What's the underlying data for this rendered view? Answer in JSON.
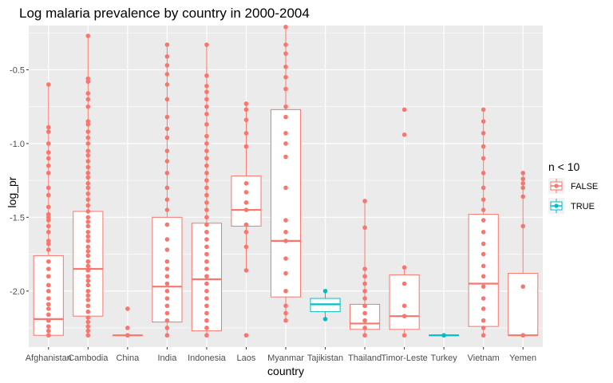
{
  "chart_data": {
    "type": "boxplot",
    "title": "Log malaria prevalence by country in 2000-2004",
    "xlabel": "country",
    "ylabel": "log_pr",
    "categories": [
      "Afghanistan",
      "Cambodia",
      "China",
      "India",
      "Indonesia",
      "Laos",
      "Myanmar",
      "Tajikistan",
      "Thailand",
      "Timor-Leste",
      "Turkey",
      "Vietnam",
      "Yemen"
    ],
    "ylim": [
      -2.38,
      -0.2
    ],
    "y_ticks": [
      -2.0,
      -1.5,
      -1.0,
      -0.5
    ],
    "y_tick_labels": [
      "-2.0",
      "-1.5",
      "-1.0",
      "-0.5"
    ],
    "grid": true,
    "legend": {
      "title": "n < 10",
      "position": "right",
      "entries": [
        {
          "label": "FALSE",
          "color": "#F8766D"
        },
        {
          "label": "TRUE",
          "color": "#00BFC4"
        }
      ]
    },
    "colors": {
      "FALSE": "#F8766D",
      "TRUE": "#00BFC4",
      "panel": "#EBEBEB",
      "grid": "#FFFFFF"
    },
    "boxes": [
      {
        "country": "Afghanistan",
        "group": "FALSE",
        "min": -2.3,
        "q1": -2.3,
        "median": -2.19,
        "q3": -1.76,
        "max": -0.6
      },
      {
        "country": "Cambodia",
        "group": "FALSE",
        "min": -2.3,
        "q1": -2.17,
        "median": -1.85,
        "q3": -1.46,
        "max": -0.27
      },
      {
        "country": "China",
        "group": "FALSE",
        "min": -2.3,
        "q1": -2.3,
        "median": -2.3,
        "q3": -2.3,
        "max": -2.3
      },
      {
        "country": "India",
        "group": "FALSE",
        "min": -2.3,
        "q1": -2.21,
        "median": -1.97,
        "q3": -1.5,
        "max": -0.33
      },
      {
        "country": "Indonesia",
        "group": "FALSE",
        "min": -2.3,
        "q1": -2.27,
        "median": -1.92,
        "q3": -1.54,
        "max": -0.33
      },
      {
        "country": "Laos",
        "group": "FALSE",
        "min": -1.86,
        "q1": -1.56,
        "median": -1.45,
        "q3": -1.22,
        "max": -0.73
      },
      {
        "country": "Myanmar",
        "group": "FALSE",
        "min": -2.2,
        "q1": -2.04,
        "median": -1.66,
        "q3": -0.77,
        "max": -0.21
      },
      {
        "country": "Tajikistan",
        "group": "TRUE",
        "min": -2.19,
        "q1": -2.14,
        "median": -2.09,
        "q3": -2.05,
        "max": -2.0
      },
      {
        "country": "Thailand",
        "group": "FALSE",
        "min": -2.3,
        "q1": -2.26,
        "median": -2.22,
        "q3": -2.09,
        "max": -1.39
      },
      {
        "country": "Timor-Leste",
        "group": "FALSE",
        "min": -2.3,
        "q1": -2.26,
        "median": -2.17,
        "q3": -1.89,
        "max": -1.84
      },
      {
        "country": "Turkey",
        "group": "TRUE",
        "min": -2.3,
        "q1": -2.3,
        "median": -2.3,
        "q3": -2.3,
        "max": -2.3
      },
      {
        "country": "Vietnam",
        "group": "FALSE",
        "min": -2.3,
        "q1": -2.24,
        "median": -1.95,
        "q3": -1.48,
        "max": -0.77
      },
      {
        "country": "Yemen",
        "group": "FALSE",
        "min": -2.3,
        "q1": -2.3,
        "median": -2.3,
        "q3": -1.88,
        "max": -1.2
      }
    ],
    "points": [
      {
        "country": "Afghanistan",
        "values": [
          -0.6,
          -0.89,
          -0.92,
          -1.0,
          -1.06,
          -1.1,
          -1.15,
          -1.2,
          -1.3,
          -1.35,
          -1.43,
          -1.48,
          -1.5,
          -1.52,
          -1.56,
          -1.6,
          -1.66,
          -1.68,
          -1.72,
          -1.8,
          -1.85,
          -1.9,
          -1.96,
          -2.0,
          -2.05,
          -2.09,
          -2.12,
          -2.16,
          -2.2,
          -2.24,
          -2.27,
          -2.3
        ]
      },
      {
        "country": "Cambodia",
        "values": [
          -0.27,
          -0.56,
          -0.58,
          -0.66,
          -0.7,
          -0.75,
          -0.85,
          -0.87,
          -0.92,
          -0.96,
          -1.0,
          -1.05,
          -1.08,
          -1.12,
          -1.16,
          -1.2,
          -1.23,
          -1.27,
          -1.3,
          -1.34,
          -1.38,
          -1.42,
          -1.46,
          -1.5,
          -1.53,
          -1.56,
          -1.6,
          -1.63,
          -1.66,
          -1.7,
          -1.73,
          -1.76,
          -1.8,
          -1.83,
          -1.86,
          -1.9,
          -1.93,
          -1.96,
          -2.0,
          -2.03,
          -2.06,
          -2.1,
          -2.14,
          -2.18,
          -2.21,
          -2.24,
          -2.27,
          -2.3
        ]
      },
      {
        "country": "China",
        "values": [
          -2.12,
          -2.25,
          -2.3
        ]
      },
      {
        "country": "India",
        "values": [
          -0.33,
          -0.41,
          -0.47,
          -0.53,
          -0.6,
          -0.7,
          -0.82,
          -0.9,
          -0.96,
          -1.05,
          -1.12,
          -1.2,
          -1.3,
          -1.38,
          -1.45,
          -1.55,
          -1.65,
          -1.72,
          -1.8,
          -1.85,
          -1.9,
          -1.95,
          -2.0,
          -2.05,
          -2.1,
          -2.15,
          -2.2,
          -2.25,
          -2.3
        ]
      },
      {
        "country": "Indonesia",
        "values": [
          -0.33,
          -0.54,
          -0.61,
          -0.65,
          -0.7,
          -0.75,
          -0.8,
          -0.87,
          -0.95,
          -1.0,
          -1.05,
          -1.1,
          -1.15,
          -1.2,
          -1.25,
          -1.3,
          -1.35,
          -1.4,
          -1.45,
          -1.5,
          -1.55,
          -1.6,
          -1.65,
          -1.7,
          -1.75,
          -1.8,
          -1.85,
          -1.9,
          -1.95,
          -2.0,
          -2.05,
          -2.1,
          -2.15,
          -2.2,
          -2.25,
          -2.3
        ]
      },
      {
        "country": "Laos",
        "values": [
          -0.73,
          -0.77,
          -0.84,
          -0.93,
          -1.02,
          -1.27,
          -1.33,
          -1.4,
          -1.45,
          -1.55,
          -1.6,
          -1.7,
          -1.86,
          -2.3
        ]
      },
      {
        "country": "Myanmar",
        "values": [
          -0.21,
          -0.33,
          -0.39,
          -0.48,
          -0.55,
          -0.63,
          -0.75,
          -0.82,
          -0.93,
          -1.0,
          -1.09,
          -1.3,
          -1.52,
          -1.6,
          -1.66,
          -1.78,
          -1.88,
          -2.0,
          -2.1,
          -2.15,
          -2.2
        ]
      },
      {
        "country": "Tajikistan",
        "values": [
          -2.0,
          -2.19
        ]
      },
      {
        "country": "Thailand",
        "values": [
          -1.39,
          -1.57,
          -1.85,
          -1.9,
          -1.95,
          -2.0,
          -2.05,
          -2.1,
          -2.15,
          -2.2,
          -2.25,
          -2.3
        ]
      },
      {
        "country": "Timor-Leste",
        "values": [
          -0.77,
          -0.94,
          -1.84,
          -1.95,
          -2.1,
          -2.17,
          -2.3
        ]
      },
      {
        "country": "Turkey",
        "values": [
          -2.3
        ]
      },
      {
        "country": "Vietnam",
        "values": [
          -0.77,
          -0.85,
          -0.93,
          -1.02,
          -1.1,
          -1.2,
          -1.3,
          -1.38,
          -1.45,
          -1.52,
          -1.6,
          -1.68,
          -1.75,
          -1.83,
          -1.9,
          -1.97,
          -2.05,
          -2.12,
          -2.2,
          -2.25,
          -2.3
        ]
      },
      {
        "country": "Yemen",
        "values": [
          -1.2,
          -1.24,
          -1.27,
          -1.3,
          -1.36,
          -1.56,
          -1.97,
          -2.3
        ]
      }
    ]
  }
}
